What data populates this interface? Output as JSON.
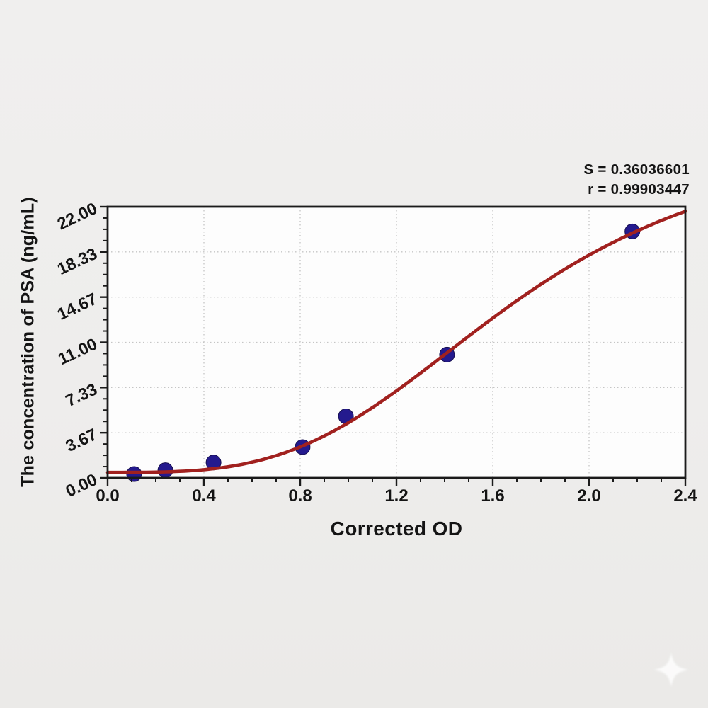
{
  "chart_data": {
    "type": "scatter",
    "title": "",
    "xlabel": "Corrected OD",
    "ylabel": "The concentration of PSA (ng/mL)",
    "xlim": [
      0,
      2.4
    ],
    "ylim": [
      0,
      22
    ],
    "x_ticks": [
      0.0,
      0.4,
      0.8,
      1.2,
      1.6,
      2.0,
      2.4
    ],
    "x_tick_labels": [
      "0.0",
      "0.4",
      "0.8",
      "1.2",
      "1.6",
      "2.0",
      "2.4"
    ],
    "x_minor_divisions": 4,
    "y_ticks": [
      0,
      3.6667,
      7.3333,
      11,
      14.6667,
      18.3333,
      22
    ],
    "y_tick_labels": [
      "0.00",
      "3.67",
      "7.33",
      "11.00",
      "14.67",
      "18.33",
      "22.00"
    ],
    "y_minor_divisions": 4,
    "grid": "dotted gridlines at major ticks, both axes",
    "legend": "none",
    "points": {
      "x": [
        0.11,
        0.24,
        0.44,
        0.81,
        0.99,
        1.41,
        2.18
      ],
      "y": [
        0.3125,
        0.625,
        1.25,
        2.5,
        5.0,
        10.0,
        20.0
      ]
    },
    "fit_curve": {
      "model": "4PL logistic: y = d + (a-d)/(1+(x/c)^b)",
      "a": 0.45,
      "b": 3.35,
      "c": 1.7,
      "d": 28.3
    },
    "annotations": [
      {
        "text": "S = 0.36036601"
      },
      {
        "text": "r = 0.99903447"
      }
    ],
    "colors": {
      "curve": "#a1211f",
      "points": "#241a8e",
      "points_edge": "#17104f",
      "axis": "#1b1b1b",
      "grid": "#c5c5c5",
      "plot_bg": "#fdfdfd",
      "page_bg": "#eeedec",
      "text": "#141414",
      "watermark": "#ffffff"
    }
  }
}
